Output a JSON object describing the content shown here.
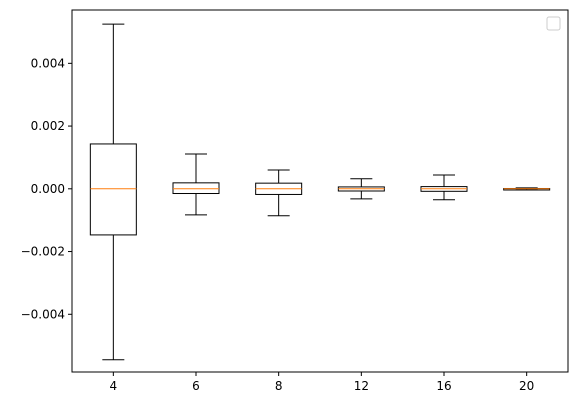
{
  "chart_data": {
    "type": "box",
    "title": "",
    "xlabel": "",
    "ylabel": "",
    "categories": [
      "4",
      "6",
      "8",
      "12",
      "16",
      "20"
    ],
    "boxes": [
      {
        "label": "4",
        "whisker_low": -0.00545,
        "q1": -0.00147,
        "median": 0.0,
        "q3": 0.00143,
        "whisker_high": 0.00525
      },
      {
        "label": "6",
        "whisker_low": -0.00083,
        "q1": -0.00015,
        "median": 0.0,
        "q3": 0.00019,
        "whisker_high": 0.00111
      },
      {
        "label": "8",
        "whisker_low": -0.00086,
        "q1": -0.00018,
        "median": 0.0,
        "q3": 0.00018,
        "whisker_high": 0.0006
      },
      {
        "label": "12",
        "whisker_low": -0.00032,
        "q1": -7e-05,
        "median": 0.0,
        "q3": 6e-05,
        "whisker_high": 0.00032
      },
      {
        "label": "16",
        "whisker_low": -0.00035,
        "q1": -8e-05,
        "median": 0.0,
        "q3": 7e-05,
        "whisker_high": 0.00044
      },
      {
        "label": "20",
        "whisker_low": -3e-05,
        "q1": -1e-05,
        "median": 0.0,
        "q3": 1e-05,
        "whisker_high": 3e-05
      }
    ],
    "ylim": [
      -0.00584,
      0.0057
    ],
    "yticks": [
      -0.004,
      -0.002,
      0.0,
      0.002,
      0.004
    ],
    "ytick_labels": [
      "−0.004",
      "−0.002",
      "0.000",
      "0.002",
      "0.004"
    ],
    "grid": false,
    "legend": {
      "position": "top-right",
      "entries": []
    },
    "colors": {
      "box": "#000000",
      "median": "#ff7f0e",
      "axes": "#000000",
      "legend_border": "#cccccc"
    }
  }
}
